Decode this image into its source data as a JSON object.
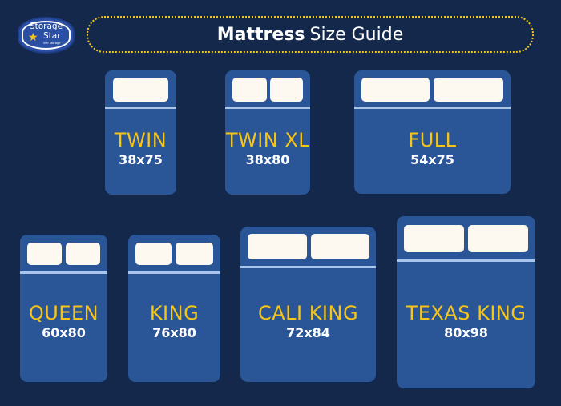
{
  "logo": {
    "line1": "Storage",
    "line2": "Star",
    "tagline": "Self Storage",
    "star_color": "#f5c518"
  },
  "title": {
    "bold": "Mattress",
    "rest": "Size Guide"
  },
  "colors": {
    "background": "#13284a",
    "bed": "#2a5596",
    "pillow": "#fdf9f0",
    "sheet": "#a9c6ea",
    "label": "#f5c518"
  },
  "beds": [
    {
      "name": "TWIN",
      "size": "38x75",
      "pillows": 1
    },
    {
      "name": "TWIN XL",
      "size": "38x80",
      "pillows": 2
    },
    {
      "name": "FULL",
      "size": "54x75",
      "pillows": 2
    },
    {
      "name": "QUEEN",
      "size": "60x80",
      "pillows": 2
    },
    {
      "name": "KING",
      "size": "76x80",
      "pillows": 2
    },
    {
      "name": "CALI KING",
      "size": "72x84",
      "pillows": 2
    },
    {
      "name": "TEXAS KING",
      "size": "80x98",
      "pillows": 2
    }
  ]
}
